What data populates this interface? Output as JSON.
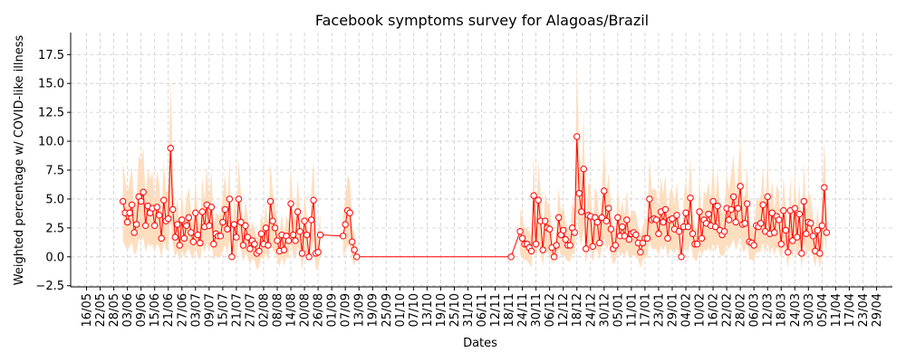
{
  "chart_data": {
    "type": "line",
    "title": "Facebook symptoms survey for Alagoas/Brazil",
    "xlabel": "Dates",
    "ylabel": "Weighted percentage w/ COVID-like illness",
    "ylim": [
      -2.6,
      19.4
    ],
    "xlim": [
      "2020-05-09",
      "2021-05-06"
    ],
    "grid": true,
    "x_tick_labels": [
      "16/05",
      "22/05",
      "28/05",
      "03/06",
      "09/06",
      "15/06",
      "21/06",
      "27/06",
      "03/07",
      "09/07",
      "15/07",
      "21/07",
      "27/07",
      "02/08",
      "08/08",
      "14/08",
      "20/08",
      "26/08",
      "01/09",
      "07/09",
      "13/09",
      "19/09",
      "25/09",
      "01/10",
      "07/10",
      "13/10",
      "19/10",
      "25/10",
      "31/10",
      "06/11",
      "12/11",
      "18/11",
      "24/11",
      "30/11",
      "06/12",
      "12/12",
      "18/12",
      "24/12",
      "30/12",
      "05/01",
      "11/01",
      "17/01",
      "23/01",
      "29/01",
      "04/02",
      "10/02",
      "16/02",
      "22/02",
      "28/02",
      "06/03",
      "12/03",
      "18/03",
      "24/03",
      "30/03",
      "05/04",
      "11/04",
      "17/04",
      "23/04",
      "29/04"
    ],
    "x_tick_dates": [
      "2020-05-16",
      "2020-05-22",
      "2020-05-28",
      "2020-06-03",
      "2020-06-09",
      "2020-06-15",
      "2020-06-21",
      "2020-06-27",
      "2020-07-03",
      "2020-07-09",
      "2020-07-15",
      "2020-07-21",
      "2020-07-27",
      "2020-08-02",
      "2020-08-08",
      "2020-08-14",
      "2020-08-20",
      "2020-08-26",
      "2020-09-01",
      "2020-09-07",
      "2020-09-13",
      "2020-09-19",
      "2020-09-25",
      "2020-10-01",
      "2020-10-07",
      "2020-10-13",
      "2020-10-19",
      "2020-10-25",
      "2020-10-31",
      "2020-11-06",
      "2020-11-12",
      "2020-11-18",
      "2020-11-24",
      "2020-11-30",
      "2020-12-06",
      "2020-12-12",
      "2020-12-18",
      "2020-12-24",
      "2020-12-30",
      "2021-01-05",
      "2021-01-11",
      "2021-01-17",
      "2021-01-23",
      "2021-01-29",
      "2021-02-04",
      "2021-02-10",
      "2021-02-16",
      "2021-02-22",
      "2021-02-28",
      "2021-03-06",
      "2021-03-12",
      "2021-03-18",
      "2021-03-24",
      "2021-03-30",
      "2021-04-05",
      "2021-04-11",
      "2021-04-17",
      "2021-04-23",
      "2021-04-29"
    ],
    "y_ticks": [
      -2.5,
      0.0,
      2.5,
      5.0,
      7.5,
      10.0,
      12.5,
      15.0,
      17.5
    ],
    "y_tick_labels": [
      "−2.5",
      "0.0",
      "2.5",
      "5.0",
      "7.5",
      "10.0",
      "12.5",
      "15.0",
      "17.5"
    ],
    "series": [
      {
        "name": "",
        "color": "#ff0000",
        "band_color": "#ffdab9",
        "segments": [
          {
            "start": "2020-06-01",
            "values": [
              4.8,
              3.8,
              3.0,
              3.8,
              4.5,
              2.1,
              2.8,
              5.2,
              4.8,
              5.6,
              2.7,
              4.4,
              3.8,
              4.2,
              2.7,
              4.3,
              3.6,
              1.6,
              4.9,
              3.1,
              3.3,
              9.4,
              4.1,
              1.7,
              2.8,
              1.0,
              3.2,
              1.6,
              2.7,
              3.4,
              2.1,
              1.3,
              3.8,
              1.9,
              1.2,
              3.9,
              2.6,
              4.5,
              2.7,
              4.3,
              1.1,
              2.0,
              1.8,
              1.8,
              3.0,
              4.1,
              2.4,
              5.0,
              0.0,
              2.8,
              1.7,
              5.0,
              3.0,
              1.0,
              2.7,
              1.7,
              0.7,
              1.4,
              1.1,
              0.3,
              0.5,
              2.0,
              1.1,
              2.5,
              1.0,
              4.8,
              3.1,
              2.5,
              1.4,
              0.5,
              1.9,
              0.6,
              1.8,
              1.4,
              4.6,
              1.9,
              1.4,
              3.9,
              2.2,
              0.3,
              3.1,
              1.9,
              0.0,
              3.2,
              4.9,
              0.3,
              0.4,
              1.9
            ]
          },
          {
            "start": "2020-09-06",
            "values": [
              1.8,
              2.8,
              4.0,
              3.8,
              1.3,
              0.6,
              0.0
            ]
          },
          {
            "start": "2020-11-19",
            "values": [
              0.0
            ]
          },
          {
            "start": "2020-11-23",
            "values": [
              2.2,
              1.6,
              1.1,
              1.1,
              0.8,
              0.5,
              5.3,
              1.1,
              4.9,
              3.1,
              0.6,
              3.1,
              2.5,
              2.4,
              0.8,
              0.0,
              1.0,
              3.4,
              1.9,
              2.3,
              1.5,
              1.0,
              1.0,
              2.5,
              2.1,
              10.4,
              5.5,
              3.9,
              7.6,
              0.7,
              3.6,
              3.5,
              0.9,
              3.4,
              3.0,
              1.2,
              3.4,
              5.7,
              3.1,
              4.2,
              2.4,
              0.7,
              1.0,
              3.4,
              1.8,
              2.6,
              1.8,
              3.2,
              1.5,
              2.0,
              2.1,
              1.9,
              1.2,
              0.4,
              1.2,
              1.6,
              1.6,
              5.0,
              3.2,
              3.3,
              3.2,
              2.0,
              3.9,
              3.0,
              4.1,
              1.6,
              3.2,
              3.3,
              2.4,
              3.6,
              2.2,
              0.0,
              2.6,
              3.8,
              2.6,
              5.1,
              2.0,
              1.1,
              1.1,
              3.9,
              1.6,
              3.2,
              2.9,
              3.7,
              2.7,
              4.8,
              2.6,
              4.4,
              2.3,
              1.9,
              2.2,
              4.2,
              3.2,
              4.1,
              5.2,
              3.0,
              4.2,
              6.1,
              2.8,
              2.9,
              4.6,
              1.3,
              1.2,
              1.0,
              2.7,
              2.6,
              2.9,
              4.5,
              2.2,
              5.2,
              2.0,
              3.8,
              2.1,
              3.5,
              3.2,
              1.1,
              4.0,
              2.3,
              0.4,
              4.0,
              1.4,
              4.2,
              1.7,
              3.7,
              0.3,
              4.8,
              2.0,
              3.0,
              2.9,
              1.8,
              0.5,
              2.3,
              0.3,
              2.7,
              6.0,
              2.1
            ]
          }
        ]
      }
    ]
  }
}
